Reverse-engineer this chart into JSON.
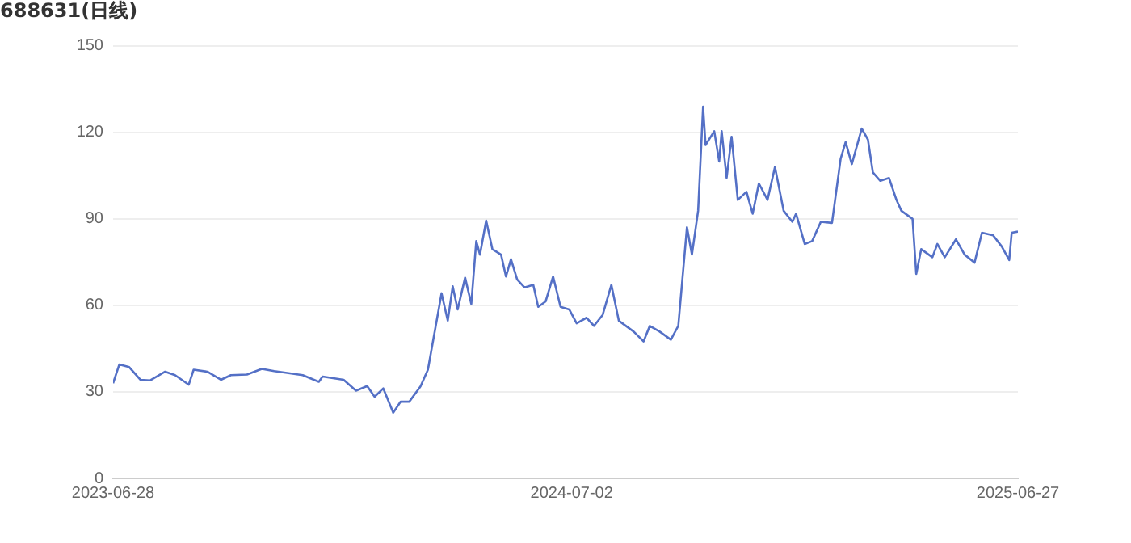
{
  "chart_data": {
    "type": "line",
    "title": "688631(日线)",
    "x": [
      "2023-06-28",
      "2023-07-03",
      "2023-07-11",
      "2023-07-20",
      "2023-07-28",
      "2023-08-09",
      "2023-08-17",
      "2023-08-28",
      "2023-09-01",
      "2023-09-12",
      "2023-09-23",
      "2023-10-01",
      "2023-10-14",
      "2023-10-26",
      "2023-11-05",
      "2023-11-28",
      "2023-12-11",
      "2023-12-14",
      "2023-12-31",
      "2024-01-10",
      "2024-01-19",
      "2024-01-25",
      "2024-02-01",
      "2024-02-09",
      "2024-02-15",
      "2024-02-22",
      "2024-03-02",
      "2024-03-08",
      "2024-03-19",
      "2024-03-24",
      "2024-03-28",
      "2024-04-01",
      "2024-04-07",
      "2024-04-12",
      "2024-04-16",
      "2024-04-19",
      "2024-04-24",
      "2024-04-29",
      "2024-05-06",
      "2024-05-10",
      "2024-05-14",
      "2024-05-19",
      "2024-05-25",
      "2024-06-01",
      "2024-06-05",
      "2024-06-11",
      "2024-06-17",
      "2024-06-23",
      "2024-06-30",
      "2024-07-06",
      "2024-07-14",
      "2024-07-20",
      "2024-07-27",
      "2024-08-03",
      "2024-08-09",
      "2024-08-21",
      "2024-08-29",
      "2024-09-03",
      "2024-09-11",
      "2024-09-20",
      "2024-09-26",
      "2024-10-03",
      "2024-10-07",
      "2024-10-12",
      "2024-10-16",
      "2024-10-18",
      "2024-10-25",
      "2024-10-29",
      "2024-10-31",
      "2024-11-04",
      "2024-11-08",
      "2024-11-13",
      "2024-11-20",
      "2024-11-25",
      "2024-11-30",
      "2024-12-07",
      "2024-12-13",
      "2024-12-20",
      "2024-12-27",
      "2024-12-30",
      "2025-01-06",
      "2025-01-12",
      "2025-01-19",
      "2025-01-28",
      "2025-02-04",
      "2025-02-08",
      "2025-02-13",
      "2025-02-21",
      "2025-02-26",
      "2025-03-02",
      "2025-03-08",
      "2025-03-15",
      "2025-03-21",
      "2025-03-25",
      "2025-04-03",
      "2025-04-06",
      "2025-04-10",
      "2025-04-19",
      "2025-04-23",
      "2025-04-29",
      "2025-05-08",
      "2025-05-15",
      "2025-05-23",
      "2025-05-29",
      "2025-06-07",
      "2025-06-14",
      "2025-06-20",
      "2025-06-22",
      "2025-06-27"
    ],
    "series": [
      {
        "color": "#5470c6",
        "values": [
          33,
          39.5,
          38.6,
          34.2,
          34,
          37,
          35.8,
          32.5,
          37.7,
          37,
          34.2,
          35.8,
          36,
          38,
          37.2,
          35.8,
          33.5,
          35.3,
          34.2,
          30.4,
          32,
          28.3,
          31.2,
          22.8,
          26.6,
          26.6,
          31.9,
          37.7,
          64.2,
          54.7,
          66.6,
          58.6,
          69.6,
          60.5,
          82.3,
          77.6,
          89.4,
          79.5,
          77.6,
          70,
          76,
          69,
          66.2,
          67.1,
          59.5,
          61.4,
          70,
          59.5,
          58.6,
          53.8,
          55.7,
          52.9,
          56.7,
          67.1,
          54.7,
          50.9,
          47.5,
          52.9,
          50.9,
          48.1,
          52.9,
          87.1,
          77.6,
          92.8,
          128.9,
          115.6,
          120.4,
          109.9,
          120.4,
          104.2,
          118.5,
          96.6,
          99.4,
          91.8,
          102.3,
          96.6,
          108,
          92.8,
          89,
          91.8,
          81.3,
          82.3,
          89,
          88.6,
          110.9,
          116.6,
          109,
          121.3,
          117.5,
          106.1,
          103.2,
          104.2,
          96.6,
          92.8,
          90,
          70.9,
          79.5,
          76.7,
          81.3,
          76.7,
          82.9,
          77.6,
          74.8,
          85.2,
          84.3,
          80.4,
          75.7,
          85.2,
          85.6
        ]
      }
    ],
    "xlim": [
      "2023-06-28",
      "2025-06-27"
    ],
    "xticks": [
      "2023-06-28",
      "2024-07-02",
      "2025-06-27"
    ],
    "ylim": [
      0,
      150
    ],
    "yticks": [
      0,
      30,
      60,
      90,
      120,
      150
    ],
    "grid": "y",
    "marker": "none",
    "line_style": "solid",
    "legend": false
  }
}
